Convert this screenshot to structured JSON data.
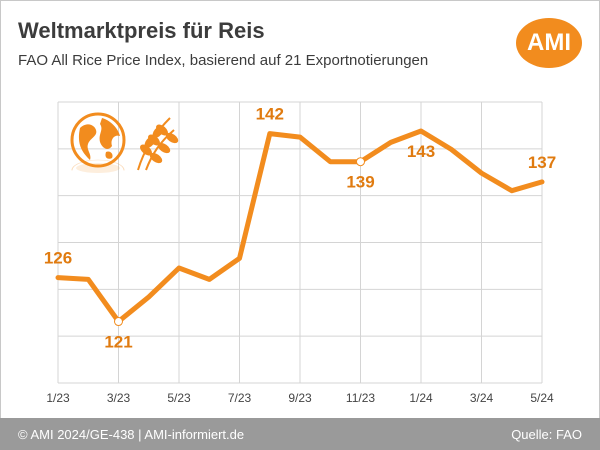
{
  "header": {
    "title": "Weltmarktpreis für Reis",
    "subtitle": "FAO All Rice Price Index, basierend auf 21 Exportnotierungen",
    "logo_text": "AMI"
  },
  "footer": {
    "copyright": "© AMI 2024/GE-438 | AMI-informiert.de",
    "source": "Quelle: FAO"
  },
  "colors": {
    "line": "#f28c1e",
    "label": "#e07b10",
    "grid": "#d4d4d4",
    "footer_bg": "#9a9a9a",
    "logo_bg": "#f28c1e"
  },
  "icons": [
    "globe-icon",
    "rice-plant-icon"
  ],
  "chart_data": {
    "type": "line",
    "title": "Weltmarktpreis für Reis",
    "subtitle": "FAO All Rice Price Index, basierend auf 21 Exportnotierungen",
    "xlabel": "",
    "ylabel": "",
    "x": [
      "1/23",
      "2/23",
      "3/23",
      "4/23",
      "5/23",
      "6/23",
      "7/23",
      "8/23",
      "9/23",
      "10/23",
      "11/23",
      "12/23",
      "1/24",
      "2/24",
      "3/24",
      "4/24",
      "5/24"
    ],
    "values": [
      126,
      125.8,
      121,
      123.8,
      127.1,
      125.8,
      128.2,
      142.4,
      142,
      139.2,
      139.2,
      141.4,
      142.7,
      140.6,
      137.9,
      135.9,
      136.9
    ],
    "x_tick_labels": [
      "1/23",
      "3/23",
      "5/23",
      "7/23",
      "9/23",
      "11/23",
      "1/24",
      "3/24",
      "5/24"
    ],
    "ylim": [
      114,
      146
    ],
    "grid": true,
    "data_labels": [
      {
        "index": 0,
        "text": "126",
        "placement": "above"
      },
      {
        "index": 2,
        "text": "121",
        "placement": "below"
      },
      {
        "index": 7,
        "text": "142",
        "placement": "above"
      },
      {
        "index": 10,
        "text": "139",
        "placement": "below"
      },
      {
        "index": 12,
        "text": "143",
        "placement": "below"
      },
      {
        "index": 16,
        "text": "137",
        "placement": "above"
      }
    ],
    "marked_points": [
      2,
      10
    ]
  }
}
